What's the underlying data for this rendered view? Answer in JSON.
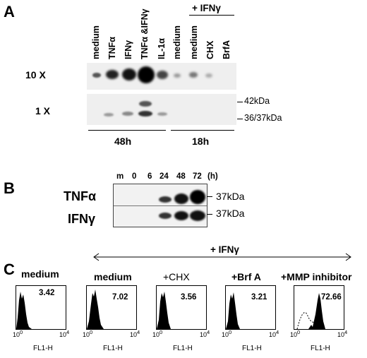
{
  "panelA": {
    "letter": "A",
    "lanes": [
      "medium",
      "TNFα",
      "IFNγ",
      "TNFα &IFNγ",
      "IL-1α",
      "medium",
      "medium",
      "CHX",
      "BrfA"
    ],
    "ifn_header": "+ IFNγ",
    "row_10x": "10 X",
    "row_1x": "1 X",
    "kda_top": "42kDa",
    "kda_bottom": "36/37kDa",
    "time_left": "48h",
    "time_right": "18h"
  },
  "panelB": {
    "letter": "B",
    "time_labels": [
      "m",
      "0",
      "6",
      "24",
      "48",
      "72",
      "(h)"
    ],
    "row_tnf": "TNFα",
    "row_ifn": "IFNγ",
    "kda_1": "37kDa",
    "kda_2": "37kDa"
  },
  "panelC": {
    "letter": "C",
    "ifn_header": "+ IFNγ",
    "x_axis_label": "FL1-H",
    "histograms": [
      {
        "label": "medium",
        "value": "3.42"
      },
      {
        "label": "medium",
        "value": "7.02"
      },
      {
        "label": "+CHX",
        "value": "3.56"
      },
      {
        "label": "+Brf A",
        "value": "3.21"
      },
      {
        "label": "+MMP inhibitor",
        "value": "72.66"
      }
    ]
  }
}
